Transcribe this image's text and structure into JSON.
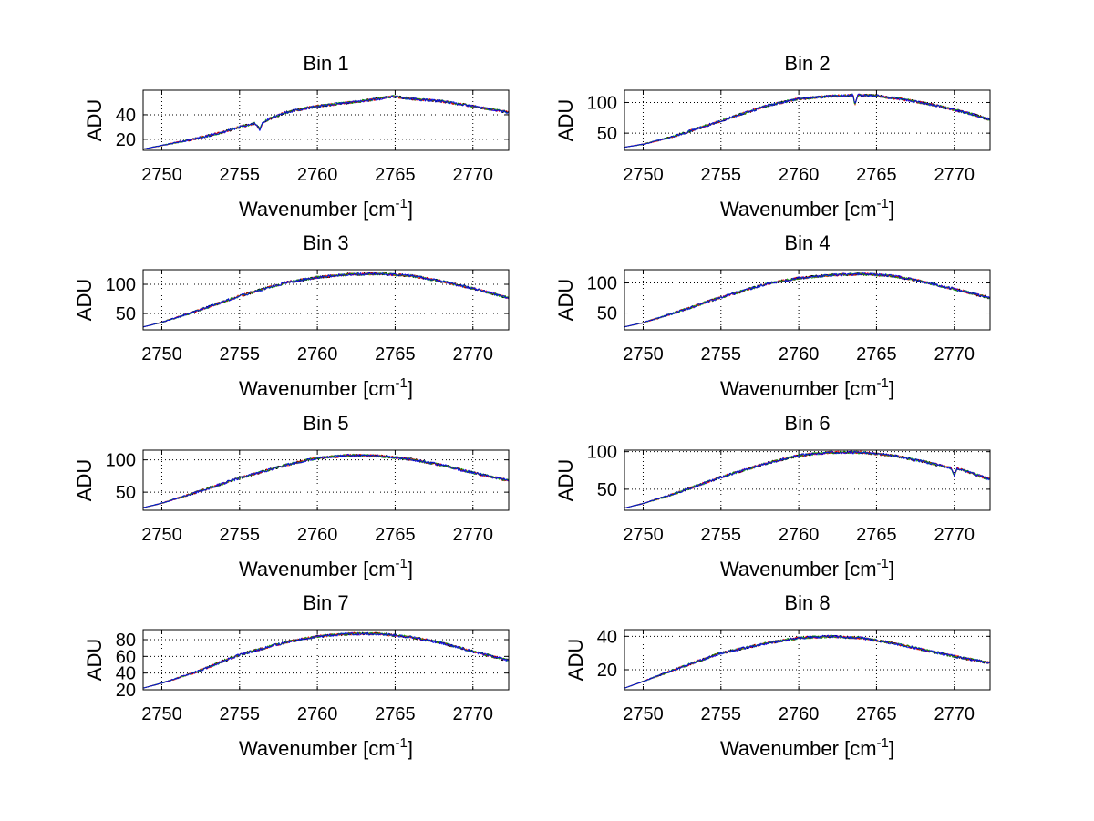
{
  "chart_data": [
    {
      "type": "line",
      "title": "Bin 1",
      "xlabel": "Wavenumber [cm",
      "xlabel_sup": "-1",
      "xlabel_suffix": "]",
      "ylabel": "ADU",
      "xlim": [
        2748.8,
        2772.3
      ],
      "ylim": [
        11,
        60
      ],
      "xticks": [
        2750,
        2755,
        2760,
        2765,
        2770
      ],
      "yticks": [
        20,
        40
      ],
      "grid": true,
      "peak_x": 2765.0,
      "x": [
        2748.8,
        2750,
        2752,
        2754,
        2755,
        2756,
        2756.3,
        2756.5,
        2757,
        2758,
        2760,
        2762,
        2764,
        2764.8,
        2766,
        2768,
        2770,
        2772.3
      ],
      "y": [
        12,
        15,
        20,
        26,
        30,
        33,
        28,
        34,
        37,
        42,
        47,
        50,
        53,
        55,
        53,
        51,
        47,
        42
      ],
      "series": [
        {
          "name": "",
          "color": "#000000"
        },
        {
          "name": "",
          "color": "#ff0000"
        },
        {
          "name": "",
          "color": "#00a000"
        },
        {
          "name": "",
          "color": "#0000ff"
        }
      ]
    },
    {
      "type": "line",
      "title": "Bin 2",
      "xlabel": "Wavenumber [cm",
      "xlabel_sup": "-1",
      "xlabel_suffix": "]",
      "ylabel": "ADU",
      "xlim": [
        2748.8,
        2772.3
      ],
      "ylim": [
        22,
        120
      ],
      "xticks": [
        2750,
        2755,
        2760,
        2765,
        2770
      ],
      "yticks": [
        50,
        100
      ],
      "grid": true,
      "peak_x": 2764.0,
      "x": [
        2748.8,
        2750,
        2752,
        2755,
        2758,
        2760,
        2762,
        2763.5,
        2763.6,
        2763.8,
        2765,
        2767,
        2769,
        2771,
        2772.3
      ],
      "y": [
        27,
        32,
        45,
        70,
        95,
        106,
        110,
        112,
        95,
        112,
        111,
        104,
        94,
        82,
        72
      ],
      "series": [
        {
          "name": "",
          "color": "#000000"
        },
        {
          "name": "",
          "color": "#ff0000"
        },
        {
          "name": "",
          "color": "#00a000"
        },
        {
          "name": "",
          "color": "#0000ff"
        }
      ]
    },
    {
      "type": "line",
      "title": "Bin 3",
      "xlabel": "Wavenumber [cm",
      "xlabel_sup": "-1",
      "xlabel_suffix": "]",
      "ylabel": "ADU",
      "xlim": [
        2748.8,
        2772.3
      ],
      "ylim": [
        22,
        125
      ],
      "xticks": [
        2750,
        2755,
        2760,
        2765,
        2770
      ],
      "yticks": [
        50,
        100
      ],
      "grid": true,
      "peak_x": 2764.0,
      "x": [
        2748.8,
        2750,
        2752,
        2755,
        2758,
        2760,
        2762,
        2764,
        2766,
        2768,
        2770,
        2772.3
      ],
      "y": [
        27,
        35,
        52,
        80,
        103,
        112,
        117,
        118,
        115,
        105,
        93,
        77
      ],
      "series": [
        {
          "name": "",
          "color": "#000000"
        },
        {
          "name": "",
          "color": "#ff0000"
        },
        {
          "name": "",
          "color": "#00a000"
        },
        {
          "name": "",
          "color": "#0000ff"
        }
      ]
    },
    {
      "type": "line",
      "title": "Bin 4",
      "xlabel": "Wavenumber [cm",
      "xlabel_sup": "-1",
      "xlabel_suffix": "]",
      "ylabel": "ADU",
      "xlim": [
        2748.8,
        2772.3
      ],
      "ylim": [
        22,
        122
      ],
      "xticks": [
        2750,
        2755,
        2760,
        2765,
        2770
      ],
      "yticks": [
        50,
        100
      ],
      "grid": true,
      "peak_x": 2764.0,
      "x": [
        2748.8,
        2750,
        2752,
        2755,
        2758,
        2760,
        2762,
        2764,
        2766,
        2768,
        2769.3,
        2770,
        2772.3
      ],
      "y": [
        27,
        34,
        50,
        76,
        99,
        108,
        113,
        115,
        112,
        102,
        94,
        90,
        75
      ],
      "series": [
        {
          "name": "",
          "color": "#000000"
        },
        {
          "name": "",
          "color": "#ff0000"
        },
        {
          "name": "",
          "color": "#00a000"
        },
        {
          "name": "",
          "color": "#0000ff"
        }
      ]
    },
    {
      "type": "line",
      "title": "Bin 5",
      "xlabel": "Wavenumber [cm",
      "xlabel_sup": "-1",
      "xlabel_suffix": "]",
      "ylabel": "ADU",
      "xlim": [
        2748.8,
        2772.3
      ],
      "ylim": [
        22,
        115
      ],
      "xticks": [
        2750,
        2755,
        2760,
        2765,
        2770
      ],
      "yticks": [
        50,
        100
      ],
      "grid": true,
      "peak_x": 2763.0,
      "x": [
        2748.8,
        2750,
        2752,
        2755,
        2758,
        2760,
        2762,
        2764,
        2766,
        2768,
        2770,
        2772.3
      ],
      "y": [
        26,
        33,
        48,
        72,
        92,
        103,
        107,
        106,
        101,
        92,
        80,
        68
      ],
      "series": [
        {
          "name": "",
          "color": "#000000"
        },
        {
          "name": "",
          "color": "#ff0000"
        },
        {
          "name": "",
          "color": "#00a000"
        },
        {
          "name": "",
          "color": "#0000ff"
        }
      ]
    },
    {
      "type": "line",
      "title": "Bin 6",
      "xlabel": "Wavenumber [cm",
      "xlabel_sup": "-1",
      "xlabel_suffix": "]",
      "ylabel": "ADU",
      "xlim": [
        2748.8,
        2772.3
      ],
      "ylim": [
        22,
        102
      ],
      "xticks": [
        2750,
        2755,
        2760,
        2765,
        2770
      ],
      "yticks": [
        50,
        100
      ],
      "grid": true,
      "peak_x": 2763.0,
      "x": [
        2748.8,
        2750,
        2752,
        2755,
        2758,
        2760,
        2762,
        2764,
        2766,
        2768,
        2769.8,
        2770,
        2770.2,
        2772.3
      ],
      "y": [
        25,
        31,
        44,
        66,
        85,
        95,
        99,
        99,
        95,
        87,
        78,
        68,
        78,
        63
      ],
      "series": [
        {
          "name": "",
          "color": "#000000"
        },
        {
          "name": "",
          "color": "#ff0000"
        },
        {
          "name": "",
          "color": "#00a000"
        },
        {
          "name": "",
          "color": "#0000ff"
        }
      ]
    },
    {
      "type": "line",
      "title": "Bin 7",
      "xlabel": "Wavenumber [cm",
      "xlabel_sup": "-1",
      "xlabel_suffix": "]",
      "ylabel": "ADU",
      "xlim": [
        2748.8,
        2772.3
      ],
      "ylim": [
        20,
        92
      ],
      "xticks": [
        2750,
        2755,
        2760,
        2765,
        2770
      ],
      "yticks": [
        20,
        40,
        60,
        80
      ],
      "grid": true,
      "peak_x": 2763.0,
      "x": [
        2748.8,
        2750,
        2752,
        2755,
        2758,
        2760,
        2762,
        2764,
        2766,
        2768,
        2770,
        2772.3
      ],
      "y": [
        22,
        28,
        40,
        62,
        77,
        84,
        87,
        87,
        83,
        76,
        66,
        55
      ],
      "series": [
        {
          "name": "",
          "color": "#000000"
        },
        {
          "name": "",
          "color": "#ff0000"
        },
        {
          "name": "",
          "color": "#00a000"
        },
        {
          "name": "",
          "color": "#0000ff"
        }
      ]
    },
    {
      "type": "line",
      "title": "Bin 8",
      "xlabel": "Wavenumber [cm",
      "xlabel_sup": "-1",
      "xlabel_suffix": "]",
      "ylabel": "ADU",
      "xlim": [
        2748.8,
        2772.3
      ],
      "ylim": [
        8,
        44
      ],
      "xticks": [
        2750,
        2755,
        2760,
        2765,
        2770
      ],
      "yticks": [
        20,
        40
      ],
      "grid": true,
      "peak_x": 2762.0,
      "x": [
        2748.8,
        2750,
        2752,
        2755,
        2758,
        2760,
        2762,
        2764,
        2766,
        2768,
        2770,
        2772.3
      ],
      "y": [
        9,
        13,
        20,
        30,
        36,
        39,
        40,
        39,
        36,
        32,
        28,
        24
      ],
      "series": [
        {
          "name": "",
          "color": "#000000"
        },
        {
          "name": "",
          "color": "#ff0000"
        },
        {
          "name": "",
          "color": "#00a000"
        },
        {
          "name": "",
          "color": "#0000ff"
        }
      ]
    }
  ]
}
